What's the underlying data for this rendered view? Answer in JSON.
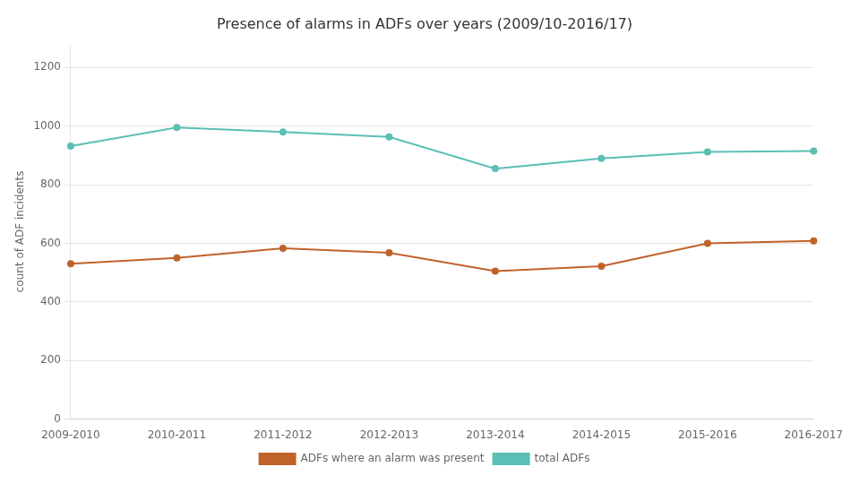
{
  "chart_data": {
    "type": "line",
    "title": "Presence of alarms in ADFs over years (2009/10-2016/17)",
    "ylabel": "count of ADF incidents",
    "categories": [
      "2009-2010",
      "2010-2011",
      "2011-2012",
      "2012-2013",
      "2013-2014",
      "2014-2015",
      "2015-2016",
      "2016-2017"
    ],
    "series": [
      {
        "name": "total ADFs",
        "color": "#5bbfb5",
        "marker": "circle",
        "values": [
          932,
          995,
          980,
          963,
          855,
          890,
          912,
          915
        ]
      },
      {
        "name": "ADFs where an alarm was present",
        "color": "#c0632a",
        "marker": "circle",
        "values": [
          530,
          550,
          583,
          568,
          505,
          522,
          600,
          608
        ]
      }
    ],
    "ylim": [
      0,
      1280
    ],
    "yticks": [
      0,
      200,
      400,
      600,
      800,
      1000,
      1200
    ],
    "grid": true,
    "legend": "bottom"
  }
}
